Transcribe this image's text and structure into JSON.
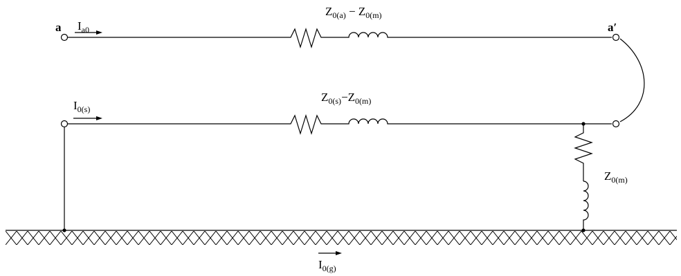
{
  "labels": {
    "node_a": "a",
    "node_a_prime": "a′",
    "current_a0": {
      "main": "I",
      "sub": "a0"
    },
    "current_0s": {
      "main": "I",
      "sub": "0(s)"
    },
    "current_0g": {
      "main": "I",
      "sub": "0(g)"
    },
    "top_impedance": {
      "z": "Z",
      "sub1": "0(a)",
      "minus": " − ",
      "z2": "Z",
      "sub2": "0(m)"
    },
    "middle_impedance": {
      "z": "Z",
      "sub1": "0(s)",
      "minus": "−",
      "z2": "Z",
      "sub2": "0(m)"
    },
    "mutual_impedance": {
      "z": "Z",
      "sub": "0(m)"
    }
  },
  "colors": {
    "line": "#000000",
    "background": "#ffffff",
    "terminal_fill": "#ffffff"
  }
}
